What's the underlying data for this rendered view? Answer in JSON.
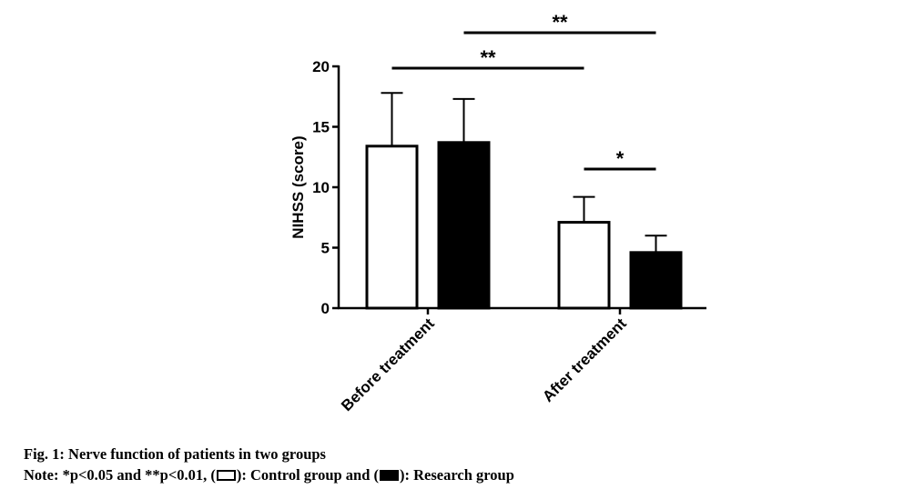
{
  "chart_data": {
    "type": "bar",
    "title": "",
    "xlabel": "",
    "ylabel": "NIHSS (score)",
    "ylim": [
      0,
      20
    ],
    "yticks": [
      0,
      5,
      10,
      15,
      20
    ],
    "categories": [
      "Before treatment",
      "After treatment"
    ],
    "series": [
      {
        "name": "Control group",
        "fill": "#ffffff",
        "values": [
          13.4,
          7.1
        ],
        "errors": [
          4.4,
          2.1
        ]
      },
      {
        "name": "Research group",
        "fill": "#000000",
        "values": [
          13.7,
          4.6
        ],
        "errors": [
          3.6,
          1.4
        ]
      }
    ],
    "significance": [
      {
        "label": "**",
        "from": "Before treatment / Control group",
        "to": "After treatment / Control group"
      },
      {
        "label": "**",
        "from": "Before treatment / Research group",
        "to": "After treatment / Research group"
      },
      {
        "label": "*",
        "from": "After treatment / Control group",
        "to": "After treatment / Research group"
      }
    ]
  },
  "caption": {
    "title": "Fig. 1: Nerve function of patients in two groups",
    "note_prefix": "Note: *p<0.05 and **p<0.01, (",
    "note_control": "): Control group and (",
    "note_research": "): Research group"
  },
  "colors": {
    "axis": "#000000",
    "open_bar": "#ffffff",
    "filled_bar": "#000000"
  }
}
